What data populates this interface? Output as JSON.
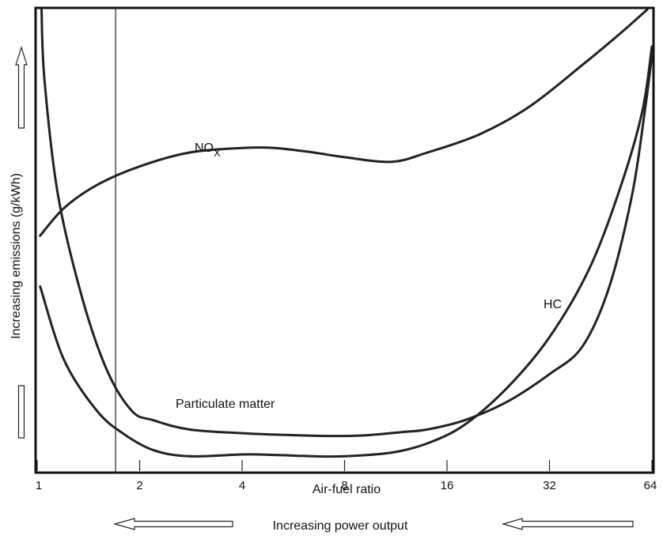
{
  "chart_data": {
    "type": "line",
    "title": "",
    "xlabel": "Air-fuel ratio",
    "ylabel": "Increasing emissions (g/kWh)",
    "footer_label": "Increasing power output",
    "x_scale": "log2",
    "xlim": [
      1,
      64
    ],
    "x_ticks": [
      1,
      2,
      4,
      8,
      16,
      32,
      64
    ],
    "x_tick_labels": [
      "1",
      "2",
      "4",
      "8",
      "16",
      "32",
      "64"
    ],
    "ylim": [
      0,
      100
    ],
    "y_ticks_shown": false,
    "reference_line_x": 1.7,
    "series": [
      {
        "name": "NOx",
        "label_main": "NO",
        "label_sub": "X",
        "points": [
          [
            1.02,
            51
          ],
          [
            1.2,
            57
          ],
          [
            1.5,
            62
          ],
          [
            2,
            66
          ],
          [
            2.8,
            69
          ],
          [
            4,
            70
          ],
          [
            5,
            70
          ],
          [
            6.5,
            69
          ],
          [
            8,
            68
          ],
          [
            11,
            67
          ],
          [
            14,
            69
          ],
          [
            20,
            73
          ],
          [
            28,
            79
          ],
          [
            40,
            88
          ],
          [
            52,
            95
          ],
          [
            62,
            100
          ]
        ]
      },
      {
        "name": "HC",
        "label": "HC",
        "points": [
          [
            1.02,
            40
          ],
          [
            1.2,
            24
          ],
          [
            1.5,
            13
          ],
          [
            1.8,
            8
          ],
          [
            2.2,
            4.5
          ],
          [
            2.8,
            3.2
          ],
          [
            4,
            3.6
          ],
          [
            5,
            3.5
          ],
          [
            6.5,
            3.2
          ],
          [
            8,
            3.2
          ],
          [
            11,
            4
          ],
          [
            14,
            6
          ],
          [
            18,
            10
          ],
          [
            24,
            18
          ],
          [
            32,
            29
          ],
          [
            42,
            44
          ],
          [
            52,
            62
          ],
          [
            60,
            78
          ],
          [
            64,
            92
          ]
        ]
      },
      {
        "name": "Particulate matter",
        "label": "Particulate matter",
        "points": [
          [
            1.03,
            100
          ],
          [
            1.05,
            85
          ],
          [
            1.15,
            60
          ],
          [
            1.35,
            38
          ],
          [
            1.6,
            22
          ],
          [
            1.9,
            13
          ],
          [
            2.2,
            11
          ],
          [
            2.8,
            9
          ],
          [
            4,
            8.2
          ],
          [
            5.5,
            7.8
          ],
          [
            7,
            7.6
          ],
          [
            9,
            7.7
          ],
          [
            12,
            8.5
          ],
          [
            14,
            9
          ],
          [
            18,
            11
          ],
          [
            24,
            15
          ],
          [
            32,
            21
          ],
          [
            40,
            27
          ],
          [
            48,
            40
          ],
          [
            56,
            60
          ],
          [
            61,
            78
          ],
          [
            64,
            90
          ]
        ]
      }
    ]
  }
}
